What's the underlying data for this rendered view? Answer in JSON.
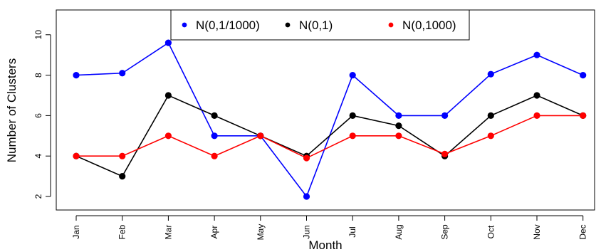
{
  "chart_data": {
    "type": "line",
    "xlabel": "Month",
    "ylabel": "Number of Clusters",
    "categories": [
      "Jan",
      "Feb",
      "Mar",
      "Apr",
      "May",
      "Jun",
      "Jul",
      "Aug",
      "Sep",
      "Oct",
      "Nov",
      "Dec"
    ],
    "y_ticks": [
      "2",
      "4",
      "6",
      "8",
      "10"
    ],
    "ylim": [
      1.5,
      11.0
    ],
    "grid": false,
    "legend_position": "top-center",
    "series": [
      {
        "name": "N(0,1/1000)",
        "color": "#0000ff",
        "values": [
          8,
          8.1,
          9.6,
          5,
          5,
          2,
          8,
          6,
          6,
          8.05,
          9,
          8
        ]
      },
      {
        "name": "N(0,1)",
        "color": "#000000",
        "values": [
          4,
          3,
          7,
          6,
          5,
          4,
          6,
          5.5,
          4,
          6,
          7,
          6
        ]
      },
      {
        "name": "N(0,1000)",
        "color": "#ff0000",
        "values": [
          4,
          4,
          5,
          4,
          5,
          3.9,
          5,
          5,
          4.1,
          5,
          6,
          6
        ]
      }
    ]
  }
}
